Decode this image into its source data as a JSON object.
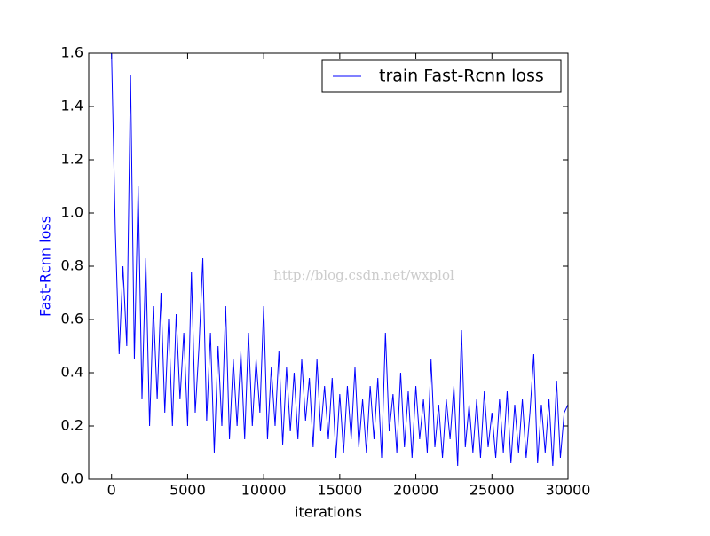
{
  "chart_data": {
    "type": "line",
    "x_label": "iterations",
    "y_label": "Fast-Rcnn loss",
    "watermark": "http://blog.csdn.net/wxplol",
    "legend": "upper right",
    "xlim": [
      -1500,
      30000
    ],
    "ylim": [
      0,
      1.6
    ],
    "xticks": [
      0,
      5000,
      10000,
      15000,
      20000,
      25000,
      30000
    ],
    "yticks": [
      {
        "value": 0,
        "label": "0.0"
      },
      0.2,
      0.4,
      0.6,
      0.8,
      {
        "value": 1,
        "label": "1.0"
      },
      1.2,
      1.4,
      1.6
    ],
    "x": [
      0,
      250,
      500,
      750,
      1000,
      1250,
      1500,
      1750,
      2000,
      2250,
      2500,
      2750,
      3000,
      3250,
      3500,
      3750,
      4000,
      4250,
      4500,
      4750,
      5000,
      5250,
      5500,
      5750,
      6000,
      6250,
      6500,
      6750,
      7000,
      7250,
      7500,
      7750,
      8000,
      8250,
      8500,
      8750,
      9000,
      9250,
      9500,
      9750,
      10000,
      10250,
      10500,
      10750,
      11000,
      11250,
      11500,
      11750,
      12000,
      12250,
      12500,
      12750,
      13000,
      13250,
      13500,
      13750,
      14000,
      14250,
      14500,
      14750,
      15000,
      15250,
      15500,
      15750,
      16000,
      16250,
      16500,
      16750,
      17000,
      17250,
      17500,
      17750,
      18000,
      18250,
      18500,
      18750,
      19000,
      19250,
      19500,
      19750,
      20000,
      20250,
      20500,
      20750,
      21000,
      21250,
      21500,
      21750,
      22000,
      22250,
      22500,
      22750,
      23000,
      23250,
      23500,
      23750,
      24000,
      24250,
      24500,
      24750,
      25000,
      25250,
      25500,
      25750,
      26000,
      26250,
      26500,
      26750,
      27000,
      27250,
      27500,
      27750,
      28000,
      28250,
      28500,
      28750,
      29000,
      29250,
      29500,
      29750,
      30000
    ],
    "series": [
      {
        "name": "train Fast-Rcnn loss",
        "color": "#0000ff",
        "values": [
          1.6,
          0.93,
          0.47,
          0.8,
          0.5,
          1.52,
          0.45,
          1.1,
          0.3,
          0.83,
          0.2,
          0.65,
          0.3,
          0.7,
          0.25,
          0.6,
          0.2,
          0.62,
          0.3,
          0.55,
          0.2,
          0.78,
          0.25,
          0.5,
          0.83,
          0.22,
          0.55,
          0.1,
          0.5,
          0.2,
          0.65,
          0.15,
          0.45,
          0.2,
          0.48,
          0.15,
          0.55,
          0.2,
          0.45,
          0.25,
          0.65,
          0.15,
          0.42,
          0.2,
          0.48,
          0.13,
          0.42,
          0.18,
          0.4,
          0.15,
          0.45,
          0.22,
          0.38,
          0.12,
          0.45,
          0.18,
          0.35,
          0.15,
          0.38,
          0.08,
          0.32,
          0.1,
          0.35,
          0.15,
          0.42,
          0.12,
          0.3,
          0.1,
          0.35,
          0.15,
          0.38,
          0.08,
          0.55,
          0.18,
          0.32,
          0.1,
          0.4,
          0.12,
          0.33,
          0.08,
          0.35,
          0.15,
          0.3,
          0.1,
          0.45,
          0.12,
          0.28,
          0.08,
          0.3,
          0.15,
          0.35,
          0.05,
          0.56,
          0.12,
          0.28,
          0.1,
          0.3,
          0.08,
          0.33,
          0.12,
          0.25,
          0.08,
          0.3,
          0.1,
          0.33,
          0.06,
          0.28,
          0.1,
          0.3,
          0.08,
          0.25,
          0.47,
          0.06,
          0.28,
          0.1,
          0.3,
          0.05,
          0.37,
          0.08,
          0.25,
          0.28
        ]
      }
    ]
  }
}
